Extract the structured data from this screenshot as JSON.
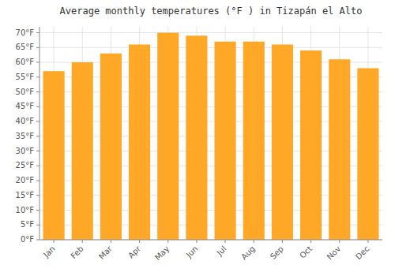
{
  "chart_data": {
    "type": "bar",
    "title": "Average monthly temperatures (°F ) in Tizapán el Alto",
    "categories": [
      "Jan",
      "Feb",
      "Mar",
      "Apr",
      "May",
      "Jun",
      "Jul",
      "Aug",
      "Sep",
      "Oct",
      "Nov",
      "Dec"
    ],
    "values": [
      57,
      60,
      63,
      66,
      70,
      69,
      67,
      67,
      66,
      64,
      61,
      58
    ],
    "color": "#FFA726",
    "ylim": [
      0,
      72
    ],
    "yticks": [
      {
        "value": 0,
        "label": "0°F"
      },
      {
        "value": 5,
        "label": "5°F"
      },
      {
        "value": 10,
        "label": "10°F"
      },
      {
        "value": 15,
        "label": "15°F"
      },
      {
        "value": 20,
        "label": "20°F"
      },
      {
        "value": 25,
        "label": "25°F"
      },
      {
        "value": 30,
        "label": "30°F"
      },
      {
        "value": 35,
        "label": "35°F"
      },
      {
        "value": 40,
        "label": "40°F"
      },
      {
        "value": 45,
        "label": "45°F"
      },
      {
        "value": 50,
        "label": "50°F"
      },
      {
        "value": 55,
        "label": "55°F"
      },
      {
        "value": 60,
        "label": "60°F"
      },
      {
        "value": 65,
        "label": "65°F"
      },
      {
        "value": 70,
        "label": "70°F"
      }
    ],
    "grid": true
  }
}
